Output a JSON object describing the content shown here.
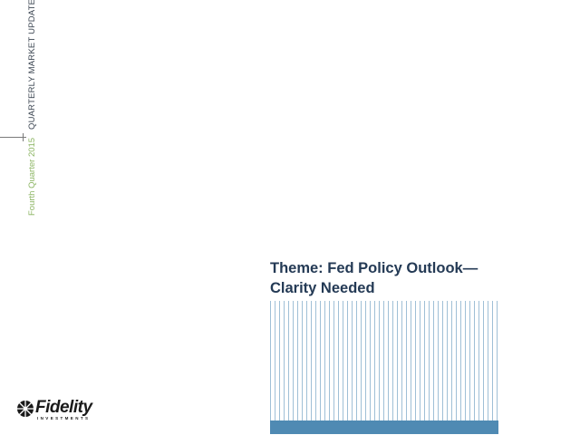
{
  "sidebar": {
    "title": "QUARTERLY MARKET UPDATE",
    "date": "Fourth Quarter 2015"
  },
  "theme": {
    "line1": "Theme: Fed Policy Outlook—",
    "line2": "Clarity Needed"
  },
  "logo": {
    "name": "Fidelity",
    "sub": "INVESTMENTS"
  },
  "colors": {
    "title": "#243a55",
    "date": "#8cb563",
    "stripe": "#9fbfd6",
    "bar": "#4f8ab3"
  }
}
